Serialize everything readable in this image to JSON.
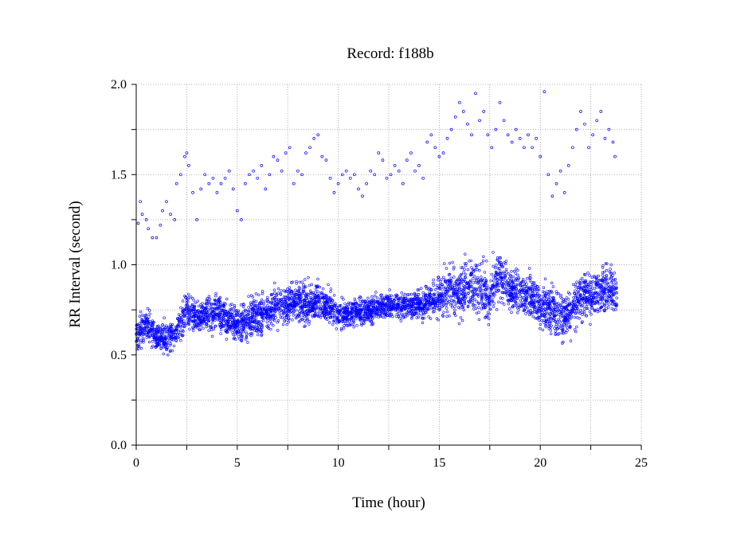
{
  "chart_data": {
    "type": "scatter",
    "title": "Record:  f188b",
    "xlabel": "Time (hour)",
    "ylabel": "RR Interval (second)",
    "xlim": [
      0,
      25
    ],
    "ylim": [
      0,
      2.0
    ],
    "x_ticks": [
      "0",
      "5",
      "10",
      "15",
      "20",
      "25"
    ],
    "y_ticks": [
      "0.0",
      "0.5",
      "1.0",
      "1.5",
      "2.0"
    ],
    "grid": true,
    "marker_color": "#0000ff",
    "baseline": {
      "x": [
        0,
        0.5,
        1,
        1.5,
        2,
        2.5,
        3,
        3.5,
        4,
        4.5,
        5,
        5.5,
        6,
        6.5,
        7,
        7.5,
        8,
        8.5,
        9,
        9.5,
        10,
        10.5,
        11,
        11.5,
        12,
        12.5,
        13,
        13.5,
        14,
        14.5,
        15,
        15.5,
        16,
        16.5,
        17,
        17.5,
        18,
        18.5,
        19,
        19.5,
        20,
        20.5,
        21,
        21.5,
        22,
        22.5,
        23,
        23.5,
        23.8
      ],
      "y": [
        0.62,
        0.66,
        0.6,
        0.59,
        0.63,
        0.75,
        0.7,
        0.72,
        0.73,
        0.7,
        0.66,
        0.7,
        0.72,
        0.74,
        0.76,
        0.78,
        0.8,
        0.78,
        0.8,
        0.78,
        0.72,
        0.73,
        0.74,
        0.74,
        0.76,
        0.78,
        0.77,
        0.78,
        0.78,
        0.8,
        0.82,
        0.86,
        0.84,
        0.88,
        0.86,
        0.82,
        0.96,
        0.86,
        0.84,
        0.83,
        0.78,
        0.75,
        0.72,
        0.74,
        0.82,
        0.84,
        0.86,
        0.85,
        0.84
      ],
      "spread": [
        0.08,
        0.08,
        0.07,
        0.07,
        0.07,
        0.09,
        0.08,
        0.08,
        0.08,
        0.08,
        0.09,
        0.09,
        0.09,
        0.09,
        0.09,
        0.09,
        0.09,
        0.09,
        0.09,
        0.08,
        0.07,
        0.07,
        0.06,
        0.06,
        0.06,
        0.06,
        0.06,
        0.06,
        0.07,
        0.08,
        0.1,
        0.12,
        0.12,
        0.13,
        0.13,
        0.12,
        0.12,
        0.1,
        0.1,
        0.1,
        0.11,
        0.12,
        0.12,
        0.12,
        0.12,
        0.12,
        0.12,
        0.12,
        0.12
      ]
    },
    "outliers": {
      "x": [
        0.1,
        0.2,
        0.3,
        0.5,
        0.6,
        0.8,
        1.0,
        1.2,
        1.3,
        1.5,
        1.7,
        1.9,
        2.0,
        2.2,
        2.4,
        2.5,
        2.6,
        2.8,
        3.0,
        3.2,
        3.4,
        3.6,
        3.8,
        4.0,
        4.2,
        4.4,
        4.6,
        4.8,
        5.0,
        5.2,
        5.4,
        5.6,
        5.8,
        6.0,
        6.2,
        6.4,
        6.6,
        6.8,
        7.0,
        7.2,
        7.4,
        7.6,
        7.8,
        8.0,
        8.2,
        8.4,
        8.6,
        8.8,
        9.0,
        9.2,
        9.4,
        9.6,
        9.8,
        10.0,
        10.2,
        10.4,
        10.6,
        10.8,
        11.0,
        11.2,
        11.4,
        11.6,
        11.8,
        12.0,
        12.2,
        12.4,
        12.6,
        12.8,
        13.0,
        13.2,
        13.4,
        13.6,
        13.8,
        14.0,
        14.2,
        14.4,
        14.6,
        14.8,
        15.0,
        15.2,
        15.4,
        15.6,
        15.8,
        16.0,
        16.2,
        16.4,
        16.6,
        16.8,
        17.0,
        17.2,
        17.4,
        17.6,
        17.8,
        18.0,
        18.2,
        18.4,
        18.6,
        18.8,
        19.0,
        19.2,
        19.4,
        19.6,
        19.8,
        20.0,
        20.2,
        20.4,
        20.6,
        20.8,
        21.0,
        21.2,
        21.4,
        21.6,
        21.8,
        22.0,
        22.2,
        22.4,
        22.6,
        22.8,
        23.0,
        23.2,
        23.4,
        23.6,
        23.7
      ],
      "y": [
        1.23,
        1.35,
        1.28,
        1.25,
        1.2,
        1.15,
        1.15,
        1.22,
        1.3,
        1.35,
        1.28,
        1.25,
        1.45,
        1.5,
        1.6,
        1.62,
        1.55,
        1.4,
        1.25,
        1.42,
        1.5,
        1.45,
        1.48,
        1.4,
        1.45,
        1.48,
        1.52,
        1.42,
        1.3,
        1.25,
        1.45,
        1.5,
        1.52,
        1.48,
        1.55,
        1.42,
        1.5,
        1.6,
        1.58,
        1.52,
        1.62,
        1.65,
        1.45,
        1.52,
        1.5,
        1.62,
        1.65,
        1.7,
        1.72,
        1.6,
        1.58,
        1.48,
        1.4,
        1.45,
        1.5,
        1.52,
        1.48,
        1.5,
        1.42,
        1.38,
        1.45,
        1.52,
        1.5,
        1.62,
        1.58,
        1.48,
        1.5,
        1.55,
        1.52,
        1.45,
        1.58,
        1.62,
        1.52,
        1.55,
        1.48,
        1.68,
        1.72,
        1.65,
        1.6,
        1.62,
        1.7,
        1.75,
        1.82,
        1.9,
        1.85,
        1.78,
        1.72,
        1.95,
        1.8,
        1.85,
        1.72,
        1.65,
        1.75,
        1.9,
        1.8,
        1.72,
        1.68,
        1.75,
        1.7,
        1.65,
        1.72,
        1.65,
        1.7,
        1.6,
        1.96,
        1.5,
        1.38,
        1.45,
        1.52,
        1.4,
        1.55,
        1.65,
        1.75,
        1.85,
        1.78,
        1.65,
        1.72,
        1.8,
        1.85,
        1.7,
        1.75,
        1.68,
        1.6
      ]
    }
  }
}
